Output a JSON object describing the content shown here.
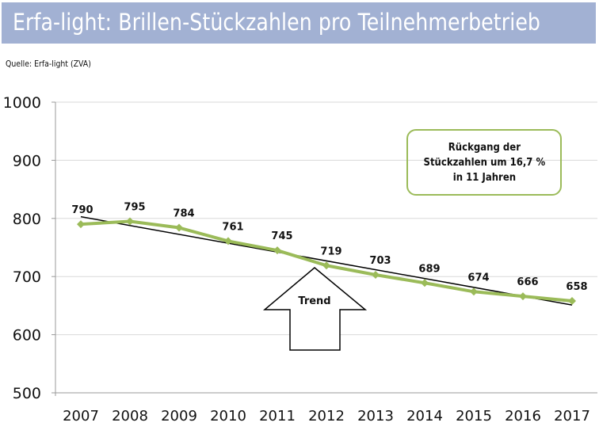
{
  "header": {
    "title": "Erfa-light: Brillen-Stückzahlen pro Teilnehmerbetrieb",
    "source": "Quelle: Erfa-light (ZVA)"
  },
  "colors": {
    "title_bar": "#a2b1d3",
    "series_line": "#9bbb59",
    "trend_line": "#000000",
    "gridline": "#d9d9d9"
  },
  "chart_data": {
    "type": "line",
    "title": "Erfa-light: Brillen-Stückzahlen pro Teilnehmerbetrieb",
    "xlabel": "",
    "ylabel": "",
    "categories": [
      "2007",
      "2008",
      "2009",
      "2010",
      "2011",
      "2012",
      "2013",
      "2014",
      "2015",
      "2016",
      "2017"
    ],
    "series": [
      {
        "name": "Brillen-Stückzahlen",
        "values": [
          790,
          795,
          784,
          761,
          745,
          719,
          703,
          689,
          674,
          666,
          658
        ],
        "data_labels": [
          "790",
          "795",
          "784",
          "761",
          "745",
          "719",
          "703",
          "689",
          "674",
          "666",
          "658"
        ]
      }
    ],
    "trendline": {
      "type": "linear",
      "start": 803,
      "end": 651
    },
    "ylim": [
      500,
      1000
    ],
    "yticks": [
      "500",
      "600",
      "700",
      "800",
      "900",
      "1000"
    ],
    "grid": true,
    "legend": "none",
    "annotations": {
      "callout": [
        "Rückgang der",
        "Stückzahlen um 16,7 %",
        "in 11 Jahren"
      ],
      "arrow_label": "Trend"
    }
  }
}
